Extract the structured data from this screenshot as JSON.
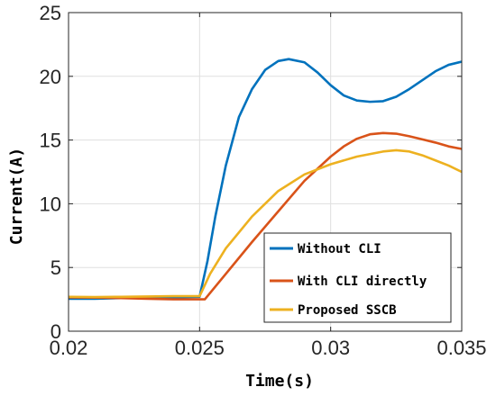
{
  "chart_data": {
    "type": "line",
    "xlabel": "Time(s)",
    "ylabel": "Current(A)",
    "xlim": [
      0.02,
      0.035
    ],
    "ylim": [
      0,
      25
    ],
    "x_ticks": [
      0.02,
      0.025,
      0.03,
      0.035
    ],
    "x_tick_labels": [
      "0.02",
      "0.025",
      "0.03",
      "0.035"
    ],
    "y_ticks": [
      0,
      5,
      10,
      15,
      20,
      25
    ],
    "y_tick_labels": [
      "0",
      "5",
      "10",
      "15",
      "20",
      "25"
    ],
    "grid": true,
    "legend_position": "bottom-right",
    "series": [
      {
        "name": "Without CLI",
        "color": "#0072BD",
        "points": [
          [
            0.02,
            2.55
          ],
          [
            0.021,
            2.55
          ],
          [
            0.022,
            2.6
          ],
          [
            0.023,
            2.62
          ],
          [
            0.024,
            2.65
          ],
          [
            0.025,
            2.7
          ],
          [
            0.0253,
            5.5
          ],
          [
            0.0256,
            9.0
          ],
          [
            0.026,
            13.0
          ],
          [
            0.0265,
            16.8
          ],
          [
            0.027,
            19.0
          ],
          [
            0.0275,
            20.5
          ],
          [
            0.028,
            21.2
          ],
          [
            0.0284,
            21.35
          ],
          [
            0.029,
            21.1
          ],
          [
            0.0295,
            20.3
          ],
          [
            0.03,
            19.3
          ],
          [
            0.0305,
            18.5
          ],
          [
            0.031,
            18.1
          ],
          [
            0.0315,
            18.0
          ],
          [
            0.032,
            18.05
          ],
          [
            0.0325,
            18.4
          ],
          [
            0.033,
            19.0
          ],
          [
            0.0335,
            19.7
          ],
          [
            0.034,
            20.4
          ],
          [
            0.0345,
            20.9
          ],
          [
            0.035,
            21.15
          ]
        ]
      },
      {
        "name": "With CLI directly",
        "color": "#D95319",
        "points": [
          [
            0.02,
            2.65
          ],
          [
            0.021,
            2.63
          ],
          [
            0.022,
            2.6
          ],
          [
            0.023,
            2.55
          ],
          [
            0.024,
            2.5
          ],
          [
            0.0252,
            2.5
          ],
          [
            0.026,
            4.5
          ],
          [
            0.027,
            7.0
          ],
          [
            0.028,
            9.4
          ],
          [
            0.029,
            11.8
          ],
          [
            0.03,
            13.7
          ],
          [
            0.0305,
            14.5
          ],
          [
            0.031,
            15.1
          ],
          [
            0.0315,
            15.45
          ],
          [
            0.032,
            15.55
          ],
          [
            0.0325,
            15.5
          ],
          [
            0.033,
            15.3
          ],
          [
            0.0335,
            15.05
          ],
          [
            0.034,
            14.8
          ],
          [
            0.0345,
            14.5
          ],
          [
            0.035,
            14.3
          ]
        ]
      },
      {
        "name": "Proposed SSCB",
        "color": "#EDB120",
        "points": [
          [
            0.02,
            2.7
          ],
          [
            0.021,
            2.68
          ],
          [
            0.022,
            2.7
          ],
          [
            0.023,
            2.72
          ],
          [
            0.024,
            2.75
          ],
          [
            0.025,
            2.75
          ],
          [
            0.0254,
            4.5
          ],
          [
            0.026,
            6.5
          ],
          [
            0.027,
            9.0
          ],
          [
            0.028,
            11.0
          ],
          [
            0.029,
            12.3
          ],
          [
            0.03,
            13.1
          ],
          [
            0.031,
            13.7
          ],
          [
            0.032,
            14.1
          ],
          [
            0.0325,
            14.2
          ],
          [
            0.033,
            14.1
          ],
          [
            0.0335,
            13.8
          ],
          [
            0.034,
            13.4
          ],
          [
            0.0345,
            13.0
          ],
          [
            0.035,
            12.5
          ]
        ]
      }
    ]
  },
  "colors": {
    "axis": "#262626",
    "grid": "#dfdfdf",
    "background": "#ffffff"
  }
}
